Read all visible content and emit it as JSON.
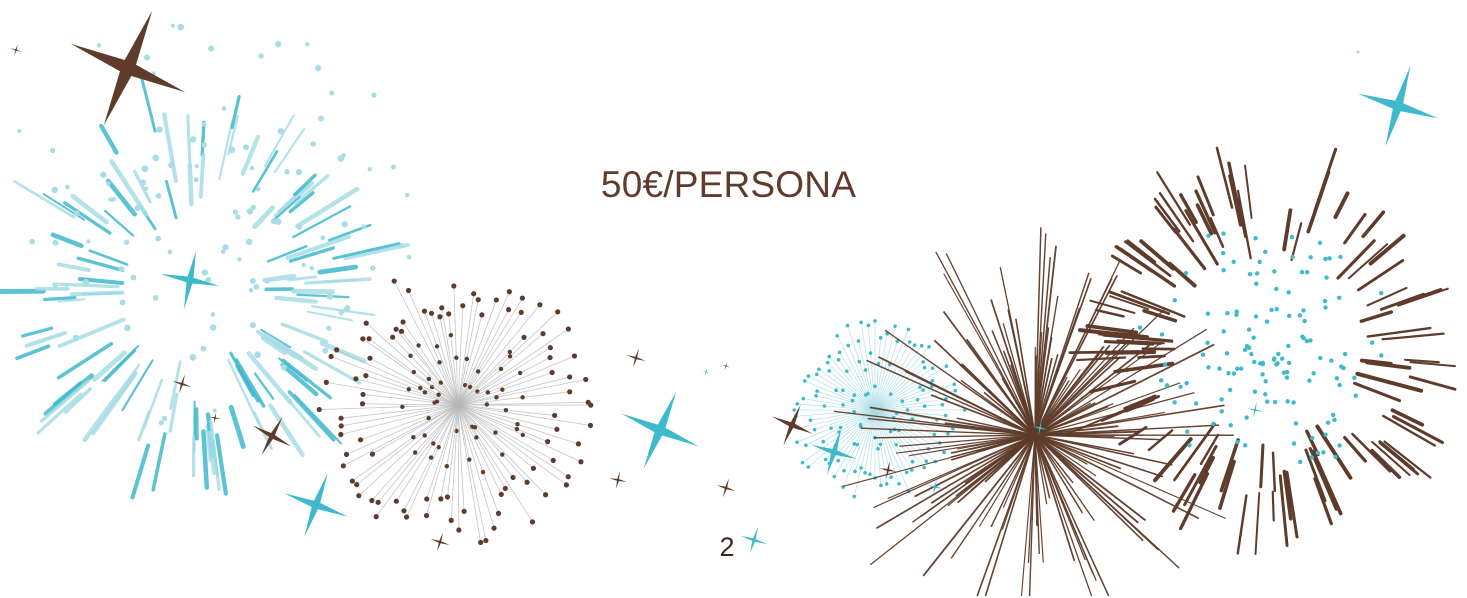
{
  "slide": {
    "price_text": "50€/PERSONA",
    "page_number": "2"
  },
  "colors": {
    "background": "#ffffff",
    "brown": "#5e3b2a",
    "dark_brown": "#3c2a20",
    "cyan": "#3fb9cc",
    "light_cyan": "#a8dde6",
    "grey_stem": "#b8b8b8"
  },
  "decorations": {
    "icons": [
      "firework-burst-icon",
      "sparkle-star-icon"
    ]
  }
}
